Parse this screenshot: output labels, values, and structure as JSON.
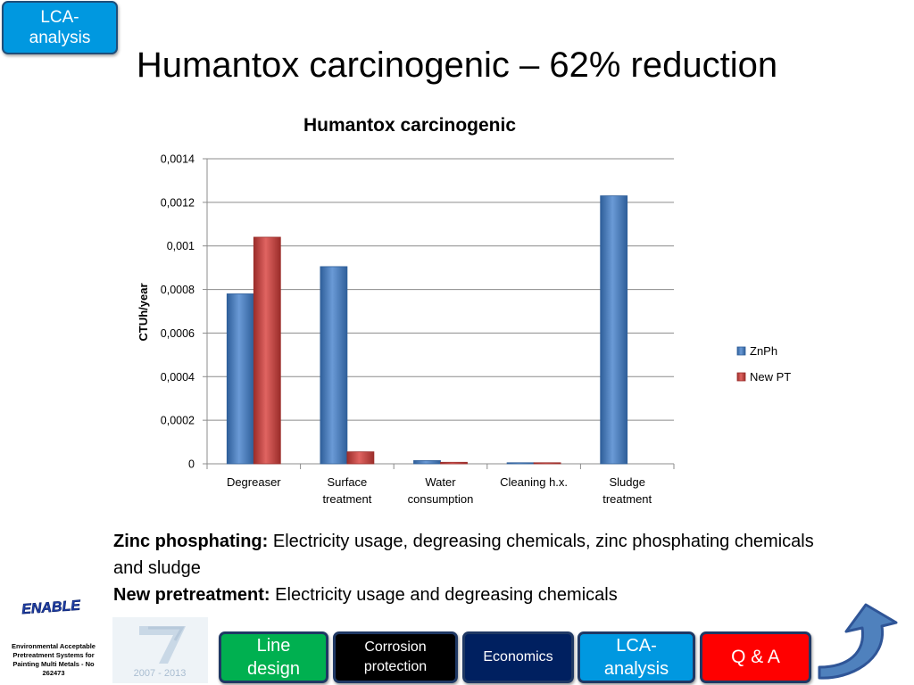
{
  "badge": {
    "line1": "LCA-",
    "line2": "analysis"
  },
  "slide_title": "Humantox carcinogenic – 62% reduction",
  "chart_data": {
    "type": "bar",
    "title": "Humantox carcinogenic",
    "ylabel": "CTUh/year",
    "xlabel": "",
    "ylim": [
      0,
      0.0014
    ],
    "yticks": [
      "0",
      "0,0002",
      "0,0004",
      "0,0006",
      "0,0008",
      "0,001",
      "0,0012",
      "0,0014"
    ],
    "categories": [
      [
        "Degreaser"
      ],
      [
        "Surface",
        "treatment"
      ],
      [
        "Water",
        "consumption"
      ],
      [
        "Cleaning h.x."
      ],
      [
        "Sludge",
        "treatment"
      ]
    ],
    "series": [
      {
        "name": "ZnPh",
        "color": "#4f81bd",
        "values": [
          0.00078,
          0.000905,
          1.5e-05,
          2e-06,
          0.00123
        ]
      },
      {
        "name": "New PT",
        "color": "#c0504d",
        "values": [
          0.00104,
          5.5e-05,
          7e-06,
          1e-06,
          0
        ]
      }
    ],
    "grid": true,
    "legend_position": "right"
  },
  "text": {
    "zinc_label": "Zinc phosphating:",
    "zinc_text": " Electricity usage, degreasing chemicals, zinc phosphating chemicals and sludge",
    "newpt_label": "New pretreatment:",
    "newpt_text": " Electricity usage and degreasing chemicals"
  },
  "footer": {
    "logo_text": "ENABLE",
    "org_text": "Environmental Acceptable Pretreatment Systems for Painting Multi Metals - No 262473",
    "fp7_years": "2007 - 2013"
  },
  "nav": {
    "line_design": {
      "line1": "Line",
      "line2": "design",
      "color": "#00b050"
    },
    "corrosion": {
      "line1": "Corrosion",
      "line2": "protection",
      "color": "#000000"
    },
    "economics": {
      "label": "Economics",
      "color": "#002060"
    },
    "lca": {
      "line1": "LCA-",
      "line2": "analysis",
      "color": "#0098e0"
    },
    "qa": {
      "label": "Q & A",
      "color": "#ff0000"
    }
  },
  "colors": {
    "back_arrow": "#4f81bd"
  }
}
